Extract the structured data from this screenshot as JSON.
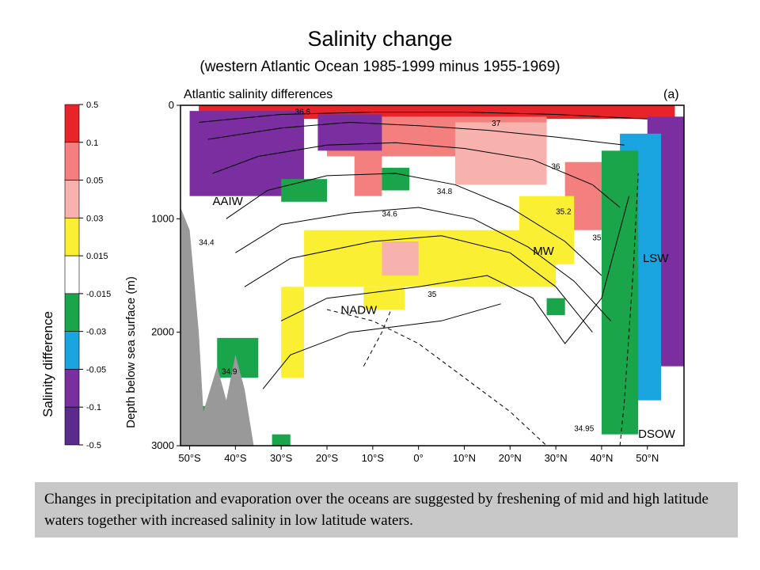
{
  "slide": {
    "title": "Salinity change",
    "subtitle": "(western Atlantic Ocean 1985-1999 minus 1955-1969)",
    "caption": "Changes in precipitation and evaporation over the oceans are suggested by freshening of mid and high latitude waters together with increased salinity in low latitude waters."
  },
  "chart_data": {
    "type": "heatmap",
    "title": "Atlantic salinity differences",
    "panel_label": "(a)",
    "xlabel": "",
    "ylabel": "Depth below sea surface (m)",
    "x_ticks": [
      "50°S",
      "40°S",
      "30°S",
      "20°S",
      "10°S",
      "0°",
      "10°N",
      "20°N",
      "30°N",
      "40°N",
      "50°N"
    ],
    "x_tick_values": [
      -50,
      -40,
      -30,
      -20,
      -10,
      0,
      10,
      20,
      30,
      40,
      50
    ],
    "xlim": [
      -52,
      58
    ],
    "y_ticks": [
      "0",
      "1000",
      "2000",
      "3000"
    ],
    "y_tick_values": [
      0,
      1000,
      2000,
      3000
    ],
    "ylim": [
      3000,
      0
    ],
    "colorbar": {
      "label": "Salinity difference",
      "levels": [
        "0.5",
        "0.1",
        "0.05",
        "0.03",
        "0.015",
        "-0.015",
        "-0.03",
        "-0.05",
        "-0.1",
        "-0.5"
      ],
      "colors": [
        "#e8242b",
        "#f47f7f",
        "#f7b2ae",
        "#fbef33",
        "#ffffff",
        "#1aa54a",
        "#1aa5e0",
        "#7a2ea0",
        "#5a2a8c"
      ]
    },
    "colors": {
      "increase_strong": "#e8242b",
      "increase": "#f47f7f",
      "increase_weak": "#f7b2ae",
      "increase_slight": "#fbef33",
      "decrease_slight": "#1aa54a",
      "decrease": "#1aa5e0",
      "decrease_strong": "#7a2ea0",
      "topography": "#999999"
    },
    "water_mass_labels": [
      "AAIW",
      "NADW",
      "MW",
      "LSW",
      "DSOW"
    ],
    "contour_labels": [
      "36.6",
      "37",
      "36",
      "34.8",
      "34.6",
      "34.4",
      "35.2",
      "35",
      "35",
      "34.9",
      "34.95"
    ],
    "regions": [
      {
        "level": "0.5",
        "x": [
          -48,
          56
        ],
        "depth": [
          0,
          120
        ]
      },
      {
        "level": "0.1",
        "x": [
          -20,
          28
        ],
        "depth": [
          100,
          450
        ]
      },
      {
        "level": "0.05",
        "x": [
          8,
          28
        ],
        "depth": [
          150,
          700
        ]
      },
      {
        "level": "0.1",
        "x": [
          -14,
          -8
        ],
        "depth": [
          450,
          800
        ]
      },
      {
        "level": "0.1",
        "x": [
          32,
          42
        ],
        "depth": [
          500,
          1100
        ]
      },
      {
        "level": "0.03",
        "x": [
          -25,
          30
        ],
        "depth": [
          1100,
          1600
        ]
      },
      {
        "level": "0.03",
        "x": [
          -12,
          -3
        ],
        "depth": [
          1600,
          1800
        ]
      },
      {
        "level": "0.03",
        "x": [
          -30,
          -25
        ],
        "depth": [
          1600,
          2400
        ]
      },
      {
        "level": "0.03",
        "x": [
          22,
          34
        ],
        "depth": [
          800,
          1400
        ]
      },
      {
        "level": "0.05",
        "x": [
          -8,
          0
        ],
        "depth": [
          1200,
          1500
        ]
      },
      {
        "level": "-0.1",
        "x": [
          -50,
          -25
        ],
        "depth": [
          50,
          800
        ]
      },
      {
        "level": "-0.1",
        "x": [
          -22,
          -8
        ],
        "depth": [
          80,
          400
        ]
      },
      {
        "level": "-0.1",
        "x": [
          50,
          58
        ],
        "depth": [
          100,
          2300
        ]
      },
      {
        "level": "-0.05",
        "x": [
          44,
          53
        ],
        "depth": [
          250,
          2600
        ]
      },
      {
        "level": "-0.015",
        "x": [
          40,
          48
        ],
        "depth": [
          400,
          2900
        ]
      },
      {
        "level": "-0.015",
        "x": [
          -30,
          -20
        ],
        "depth": [
          650,
          850
        ]
      },
      {
        "level": "-0.015",
        "x": [
          -8,
          -2
        ],
        "depth": [
          550,
          750
        ]
      },
      {
        "level": "-0.015",
        "x": [
          -44,
          -35
        ],
        "depth": [
          2050,
          2400
        ]
      },
      {
        "level": "-0.015",
        "x": [
          28,
          32
        ],
        "depth": [
          1700,
          1850
        ]
      },
      {
        "level": "-0.015",
        "x": [
          -32,
          -28
        ],
        "depth": [
          2900,
          3000
        ]
      },
      {
        "level": "-0.03",
        "x": [
          -48,
          -42
        ],
        "depth": [
          2650,
          3000
        ]
      }
    ],
    "topography": [
      [
        -52,
        3000
      ],
      [
        -52,
        900
      ],
      [
        -50,
        1100
      ],
      [
        -48,
        2000
      ],
      [
        -47,
        2700
      ],
      [
        -44,
        2300
      ],
      [
        -42,
        2600
      ],
      [
        -40,
        2200
      ],
      [
        -38,
        2500
      ],
      [
        -36,
        3000
      ]
    ]
  }
}
